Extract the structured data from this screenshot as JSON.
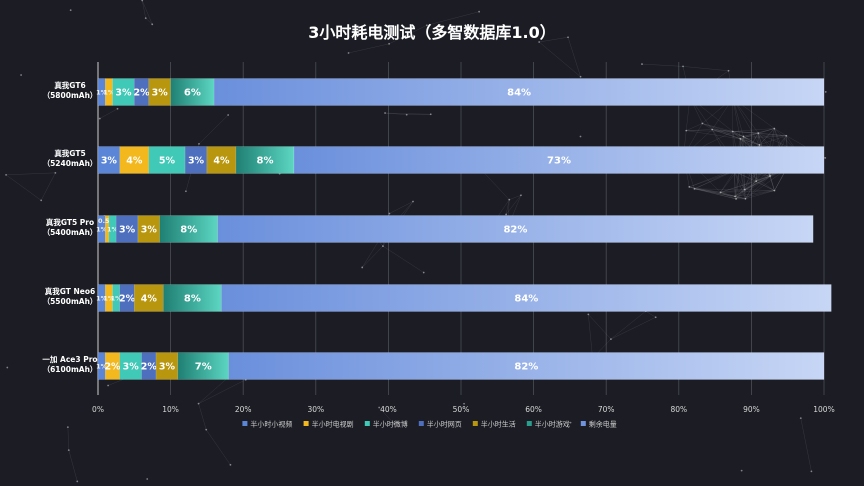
{
  "chart_data": {
    "type": "bar",
    "orientation": "horizontal",
    "stacked": true,
    "title": "3小时耗电测试（多智数据库1.0）",
    "categories": [
      [
        "真我GT6",
        "（5800mAh）"
      ],
      [
        "真我GT5",
        "（5240mAh）"
      ],
      [
        "真我GT5 Pro",
        "（5400mAh）"
      ],
      [
        "真我GT Neo6",
        "（5500mAh）"
      ],
      [
        "一加 Ace3 Pro",
        "（6100mAh）"
      ]
    ],
    "series": [
      {
        "name": "半小时小视频",
        "color": "#5b85d6",
        "values": [
          1,
          3,
          1,
          1,
          1
        ],
        "labels": [
          "1%",
          "3%",
          "1%",
          "1%",
          "1%"
        ]
      },
      {
        "name": "半小时电视剧",
        "color": "#f2b81e",
        "values": [
          1,
          4,
          0.5,
          1,
          2
        ],
        "labels": [
          "1%",
          "4%",
          "0.5%",
          "1%",
          "2%"
        ]
      },
      {
        "name": "半小时微博",
        "color": "#3fc9b6",
        "values": [
          3,
          5,
          1,
          1,
          3
        ],
        "labels": [
          "3%",
          "5%",
          "1%",
          "1%",
          "3%"
        ]
      },
      {
        "name": "半小时网页",
        "color": "#4d6fbd",
        "values": [
          2,
          3,
          3,
          2,
          2
        ],
        "labels": [
          "2%",
          "3%",
          "3%",
          "2%",
          "2%"
        ]
      },
      {
        "name": "半小时生活",
        "color": "#b8960e",
        "values": [
          3,
          4,
          3,
          4,
          3
        ],
        "labels": [
          "3%",
          "4%",
          "3%",
          "4%",
          "3%"
        ]
      },
      {
        "name": "半小时游戏",
        "color": "#2a9e8c",
        "values": [
          6,
          8,
          8,
          8,
          7
        ],
        "labels": [
          "6%",
          "8%",
          "8%",
          "8%",
          "7%"
        ]
      },
      {
        "name": "剩余电量",
        "color": "#6f93de",
        "values": [
          84,
          73,
          82,
          84,
          82
        ],
        "labels": [
          "84%",
          "73%",
          "82%",
          "84%",
          "82%"
        ]
      }
    ],
    "xlim": [
      0,
      100
    ],
    "xticks": [
      "0%",
      "10%",
      "20%",
      "30%",
      "40%",
      "50%",
      "60%",
      "70%",
      "80%",
      "90%",
      "100%"
    ],
    "grid": true,
    "legend_position": "bottom"
  }
}
